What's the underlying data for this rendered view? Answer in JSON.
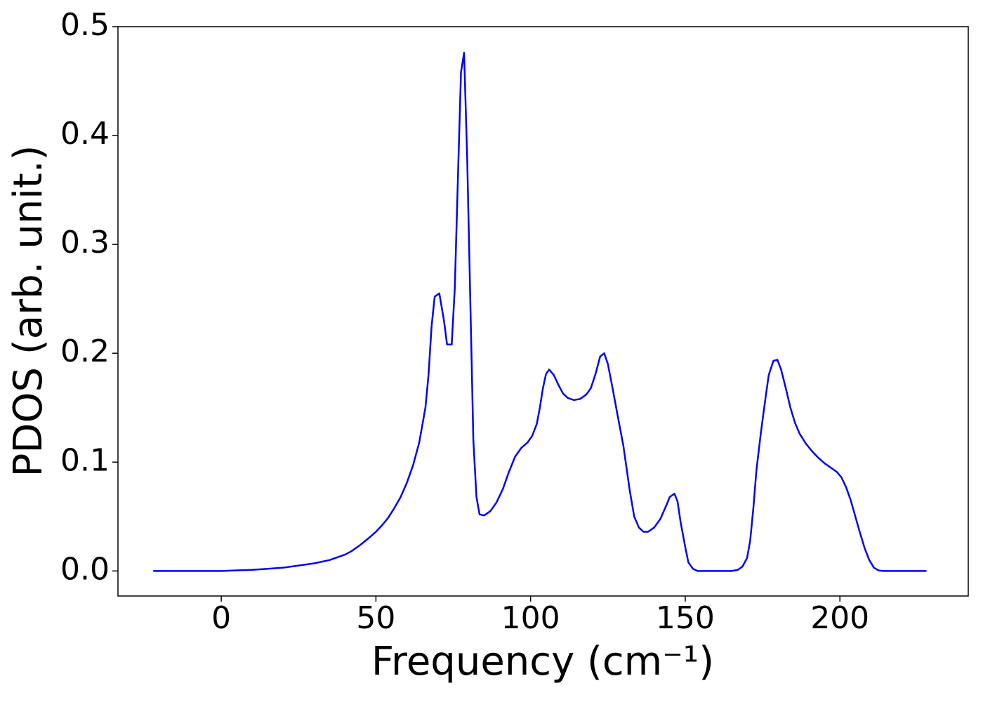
{
  "chart_data": {
    "type": "line",
    "xlabel": "Frequency (cm⁻¹)",
    "ylabel": "PDOS (arb. unit.)",
    "xlim": [
      -33.4,
      241.5
    ],
    "ylim": [
      -0.023,
      0.5
    ],
    "xticks": [
      0,
      50,
      100,
      150,
      200
    ],
    "yticks": [
      {
        "value": 0,
        "label": "0.0"
      },
      0.1,
      0.2,
      0.3,
      0.4,
      0.5
    ],
    "series": [
      {
        "color": "#0000ff",
        "x": [
          -22,
          0,
          5,
          10,
          15,
          20,
          25,
          30,
          35,
          40,
          42,
          45,
          48,
          50,
          52,
          54,
          56,
          58,
          60,
          62,
          64,
          66,
          67,
          68,
          69,
          70.5,
          72,
          73,
          74.5,
          75.5,
          76.5,
          77.5,
          78.5,
          79.5,
          80.5,
          81.5,
          82.5,
          83.5,
          85,
          87,
          89,
          91,
          93,
          95,
          97,
          99,
          100.5,
          102,
          103,
          104,
          105,
          106,
          107.5,
          109,
          110.5,
          112,
          114,
          116,
          118,
          119.5,
          121,
          122.5,
          123.8,
          125,
          126.5,
          128,
          130,
          132,
          133.5,
          135,
          136.5,
          138,
          140,
          142,
          144,
          145,
          146.5,
          147.5,
          148.5,
          150,
          151,
          152.5,
          154,
          165,
          167,
          168.5,
          170,
          171,
          172,
          173,
          174.5,
          176,
          177,
          178.5,
          179.8,
          181,
          182.5,
          184,
          185.5,
          187,
          189,
          191,
          193,
          195,
          197,
          199,
          200.5,
          202,
          203.5,
          205,
          206.5,
          208,
          209.5,
          211,
          212.5,
          214,
          228
        ],
        "values": [
          0,
          0,
          0.0005,
          0.001,
          0.002,
          0.003,
          0.005,
          0.007,
          0.01,
          0.015,
          0.018,
          0.024,
          0.031,
          0.036,
          0.042,
          0.049,
          0.058,
          0.068,
          0.081,
          0.097,
          0.118,
          0.15,
          0.18,
          0.225,
          0.252,
          0.255,
          0.23,
          0.208,
          0.208,
          0.26,
          0.36,
          0.458,
          0.476,
          0.38,
          0.25,
          0.12,
          0.068,
          0.052,
          0.051,
          0.055,
          0.063,
          0.075,
          0.091,
          0.105,
          0.113,
          0.118,
          0.124,
          0.135,
          0.15,
          0.168,
          0.181,
          0.185,
          0.18,
          0.171,
          0.163,
          0.159,
          0.157,
          0.158,
          0.162,
          0.168,
          0.181,
          0.197,
          0.2,
          0.19,
          0.168,
          0.145,
          0.115,
          0.075,
          0.05,
          0.04,
          0.036,
          0.036,
          0.04,
          0.048,
          0.061,
          0.068,
          0.071,
          0.064,
          0.045,
          0.022,
          0.008,
          0.002,
          0,
          0,
          0.001,
          0.004,
          0.012,
          0.028,
          0.057,
          0.092,
          0.128,
          0.16,
          0.18,
          0.193,
          0.194,
          0.185,
          0.168,
          0.15,
          0.136,
          0.126,
          0.117,
          0.11,
          0.104,
          0.099,
          0.095,
          0.091,
          0.086,
          0.077,
          0.065,
          0.05,
          0.035,
          0.021,
          0.01,
          0.003,
          0.0005,
          0,
          0
        ]
      }
    ]
  }
}
